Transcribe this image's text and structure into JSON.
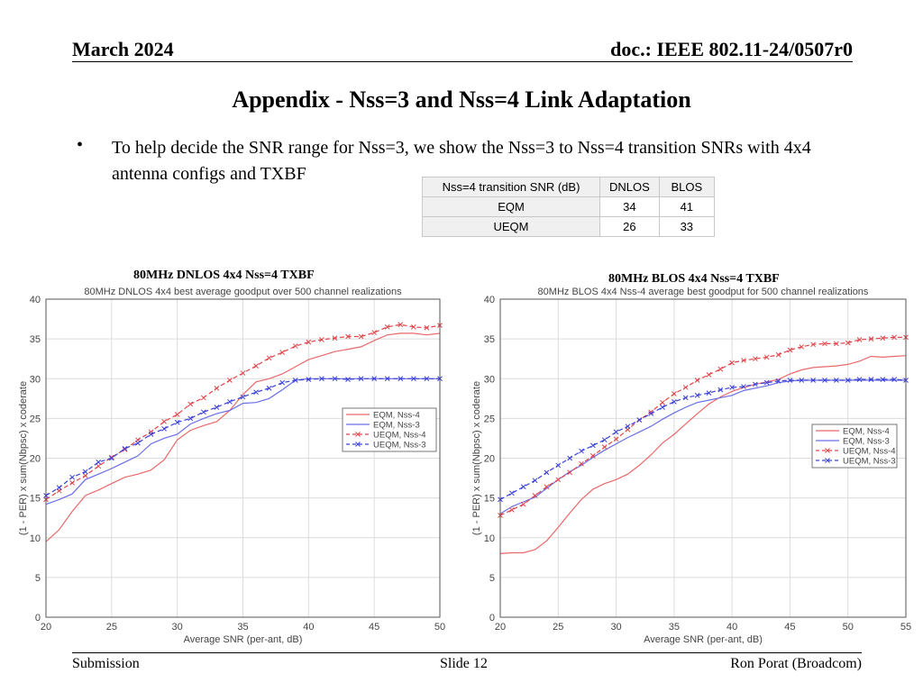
{
  "header": {
    "date": "March 2024",
    "doc": "doc.: IEEE 802.11-24/0507r0"
  },
  "title": "Appendix  - Nss=3 and Nss=4 Link Adaptation",
  "bullet": {
    "marker": "•",
    "text": "To help decide the SNR range for Nss=3, we show the Nss=3 to Nss=4 transition SNRs with 4x4 antenna configs and TXBF"
  },
  "table": {
    "headers": [
      "Nss=4 transition SNR (dB)",
      "DNLOS",
      "BLOS"
    ],
    "rows": [
      [
        "EQM",
        "34",
        "41"
      ],
      [
        "UEQM",
        "26",
        "33"
      ]
    ]
  },
  "footer": {
    "left": "Submission",
    "center": "Slide 12",
    "right": "Ron Porat (Broadcom)"
  },
  "chart_data": [
    {
      "type": "line",
      "caption": "80MHz DNLOS 4x4 Nss=4 TXBF",
      "title": "80MHz DNLOS 4x4 best average goodput over 500 channel realizations",
      "xlabel": "Average SNR (per-ant, dB)",
      "ylabel": "(1 - PER) x sum(Nbpsc) x coderate",
      "xlim": [
        20,
        50
      ],
      "ylim": [
        0,
        40
      ],
      "xticks": [
        20,
        25,
        30,
        35,
        40,
        45,
        50
      ],
      "yticks": [
        0,
        5,
        10,
        15,
        20,
        25,
        30,
        35,
        40
      ],
      "grid": true,
      "legend": "right",
      "x": [
        20,
        21,
        22,
        23,
        24,
        25,
        26,
        27,
        28,
        29,
        30,
        31,
        32,
        33,
        34,
        35,
        36,
        37,
        38,
        39,
        40,
        41,
        42,
        43,
        44,
        45,
        46,
        47,
        48,
        49,
        50
      ],
      "series": [
        {
          "name": "EQM, Nss-4",
          "color": "#e8696a",
          "dash": false,
          "marker": false,
          "values": [
            9.5,
            11.0,
            13.3,
            15.3,
            16.0,
            16.8,
            17.6,
            18.0,
            18.5,
            19.8,
            22.3,
            23.5,
            24.1,
            24.6,
            26.0,
            28.0,
            29.6,
            30.0,
            30.6,
            31.5,
            32.4,
            32.9,
            33.4,
            33.7,
            34.0,
            34.8,
            35.5,
            35.7,
            35.7,
            35.5,
            35.7
          ]
        },
        {
          "name": "EQM, Nss-3",
          "color": "#6a6ee6",
          "dash": false,
          "marker": false,
          "values": [
            14.2,
            14.8,
            15.5,
            17.3,
            18.0,
            18.7,
            19.5,
            20.3,
            21.8,
            22.5,
            23.0,
            24.3,
            25.0,
            25.6,
            26.0,
            26.9,
            27.0,
            27.5,
            28.6,
            29.8,
            30.0,
            30.0,
            30.0,
            30.0,
            30.0,
            30.0,
            30.0,
            30.0,
            30.0,
            30.0,
            30.0
          ]
        },
        {
          "name": "UEQM, Nss-4",
          "color": "#e0454a",
          "dash": true,
          "marker": true,
          "values": [
            14.8,
            15.9,
            16.9,
            17.8,
            19.0,
            20.1,
            21.1,
            22.3,
            23.3,
            24.6,
            25.5,
            26.8,
            27.6,
            28.8,
            29.8,
            30.7,
            31.6,
            32.6,
            33.3,
            34.1,
            34.6,
            34.9,
            35.1,
            35.3,
            35.3,
            35.8,
            36.5,
            36.8,
            36.5,
            36.4,
            36.7
          ]
        },
        {
          "name": "UEQM, Nss-3",
          "color": "#3a40d8",
          "dash": true,
          "marker": true,
          "values": [
            15.3,
            16.3,
            17.6,
            18.3,
            19.5,
            20.0,
            21.2,
            21.9,
            23.0,
            23.7,
            24.5,
            25.0,
            25.8,
            26.4,
            27.1,
            27.7,
            28.3,
            28.8,
            29.5,
            29.8,
            29.9,
            30.0,
            30.0,
            29.9,
            30.0,
            30.0,
            30.0,
            30.0,
            30.0,
            30.0,
            30.0
          ]
        }
      ]
    },
    {
      "type": "line",
      "caption": "80MHz BLOS 4x4 Nss=4 TXBF",
      "title": "80MHz BLOS 4x4 Nss-4 average best goodput for 500 channel realizations",
      "xlabel": "Average SNR (per-ant, dB)",
      "ylabel": "(1 - PER) x sum(Nbpsc) x coderate",
      "xlim": [
        20,
        55
      ],
      "ylim": [
        0,
        40
      ],
      "xticks": [
        20,
        25,
        30,
        35,
        40,
        45,
        50,
        55
      ],
      "yticks": [
        0,
        5,
        10,
        15,
        20,
        25,
        30,
        35,
        40
      ],
      "grid": true,
      "legend": "right",
      "x": [
        20,
        21,
        22,
        23,
        24,
        25,
        26,
        27,
        28,
        29,
        30,
        31,
        32,
        33,
        34,
        35,
        36,
        37,
        38,
        39,
        40,
        41,
        42,
        43,
        44,
        45,
        46,
        47,
        48,
        49,
        50,
        51,
        52,
        53,
        54,
        55
      ],
      "series": [
        {
          "name": "EQM, Nss-4",
          "color": "#e8696a",
          "dash": false,
          "marker": false,
          "values": [
            8.0,
            8.1,
            8.1,
            8.5,
            9.6,
            11.3,
            13.1,
            14.8,
            16.1,
            16.8,
            17.3,
            18.0,
            19.1,
            20.4,
            21.9,
            23.0,
            24.3,
            25.6,
            26.8,
            27.7,
            28.4,
            28.9,
            29.3,
            29.6,
            29.9,
            30.6,
            31.1,
            31.4,
            31.5,
            31.6,
            31.8,
            32.2,
            32.8,
            32.7,
            32.8,
            32.9
          ]
        },
        {
          "name": "EQM, Nss-3",
          "color": "#6a6ee6",
          "dash": false,
          "marker": false,
          "values": [
            13.0,
            13.9,
            14.5,
            15.1,
            16.2,
            17.3,
            18.3,
            19.1,
            20.1,
            21.0,
            21.8,
            22.6,
            23.3,
            24.0,
            24.9,
            25.7,
            26.4,
            27.0,
            27.3,
            27.6,
            27.9,
            28.5,
            28.8,
            29.1,
            29.5,
            29.7,
            29.8,
            29.8,
            29.8,
            29.8,
            29.8,
            29.8,
            29.8,
            29.8,
            29.8,
            29.8
          ]
        },
        {
          "name": "UEQM, Nss-4",
          "color": "#e0454a",
          "dash": true,
          "marker": true,
          "values": [
            12.8,
            13.5,
            14.2,
            15.3,
            16.4,
            17.3,
            18.2,
            19.3,
            20.3,
            21.4,
            22.4,
            23.6,
            24.8,
            25.8,
            27.0,
            28.1,
            28.9,
            29.8,
            30.5,
            31.2,
            32.0,
            32.3,
            32.5,
            32.7,
            33.0,
            33.6,
            34.0,
            34.3,
            34.4,
            34.4,
            34.5,
            34.9,
            35.0,
            35.1,
            35.2,
            35.2
          ]
        },
        {
          "name": "UEQM, Nss-3",
          "color": "#3a40d8",
          "dash": true,
          "marker": true,
          "values": [
            14.8,
            15.6,
            16.4,
            17.2,
            18.2,
            19.1,
            20.0,
            20.9,
            21.6,
            22.3,
            23.3,
            24.0,
            24.8,
            25.6,
            26.4,
            27.1,
            27.6,
            27.9,
            28.2,
            28.6,
            28.9,
            29.0,
            29.3,
            29.5,
            29.7,
            29.8,
            29.8,
            29.8,
            29.8,
            29.8,
            29.8,
            29.9,
            29.9,
            29.9,
            29.9,
            29.8
          ]
        }
      ]
    }
  ]
}
